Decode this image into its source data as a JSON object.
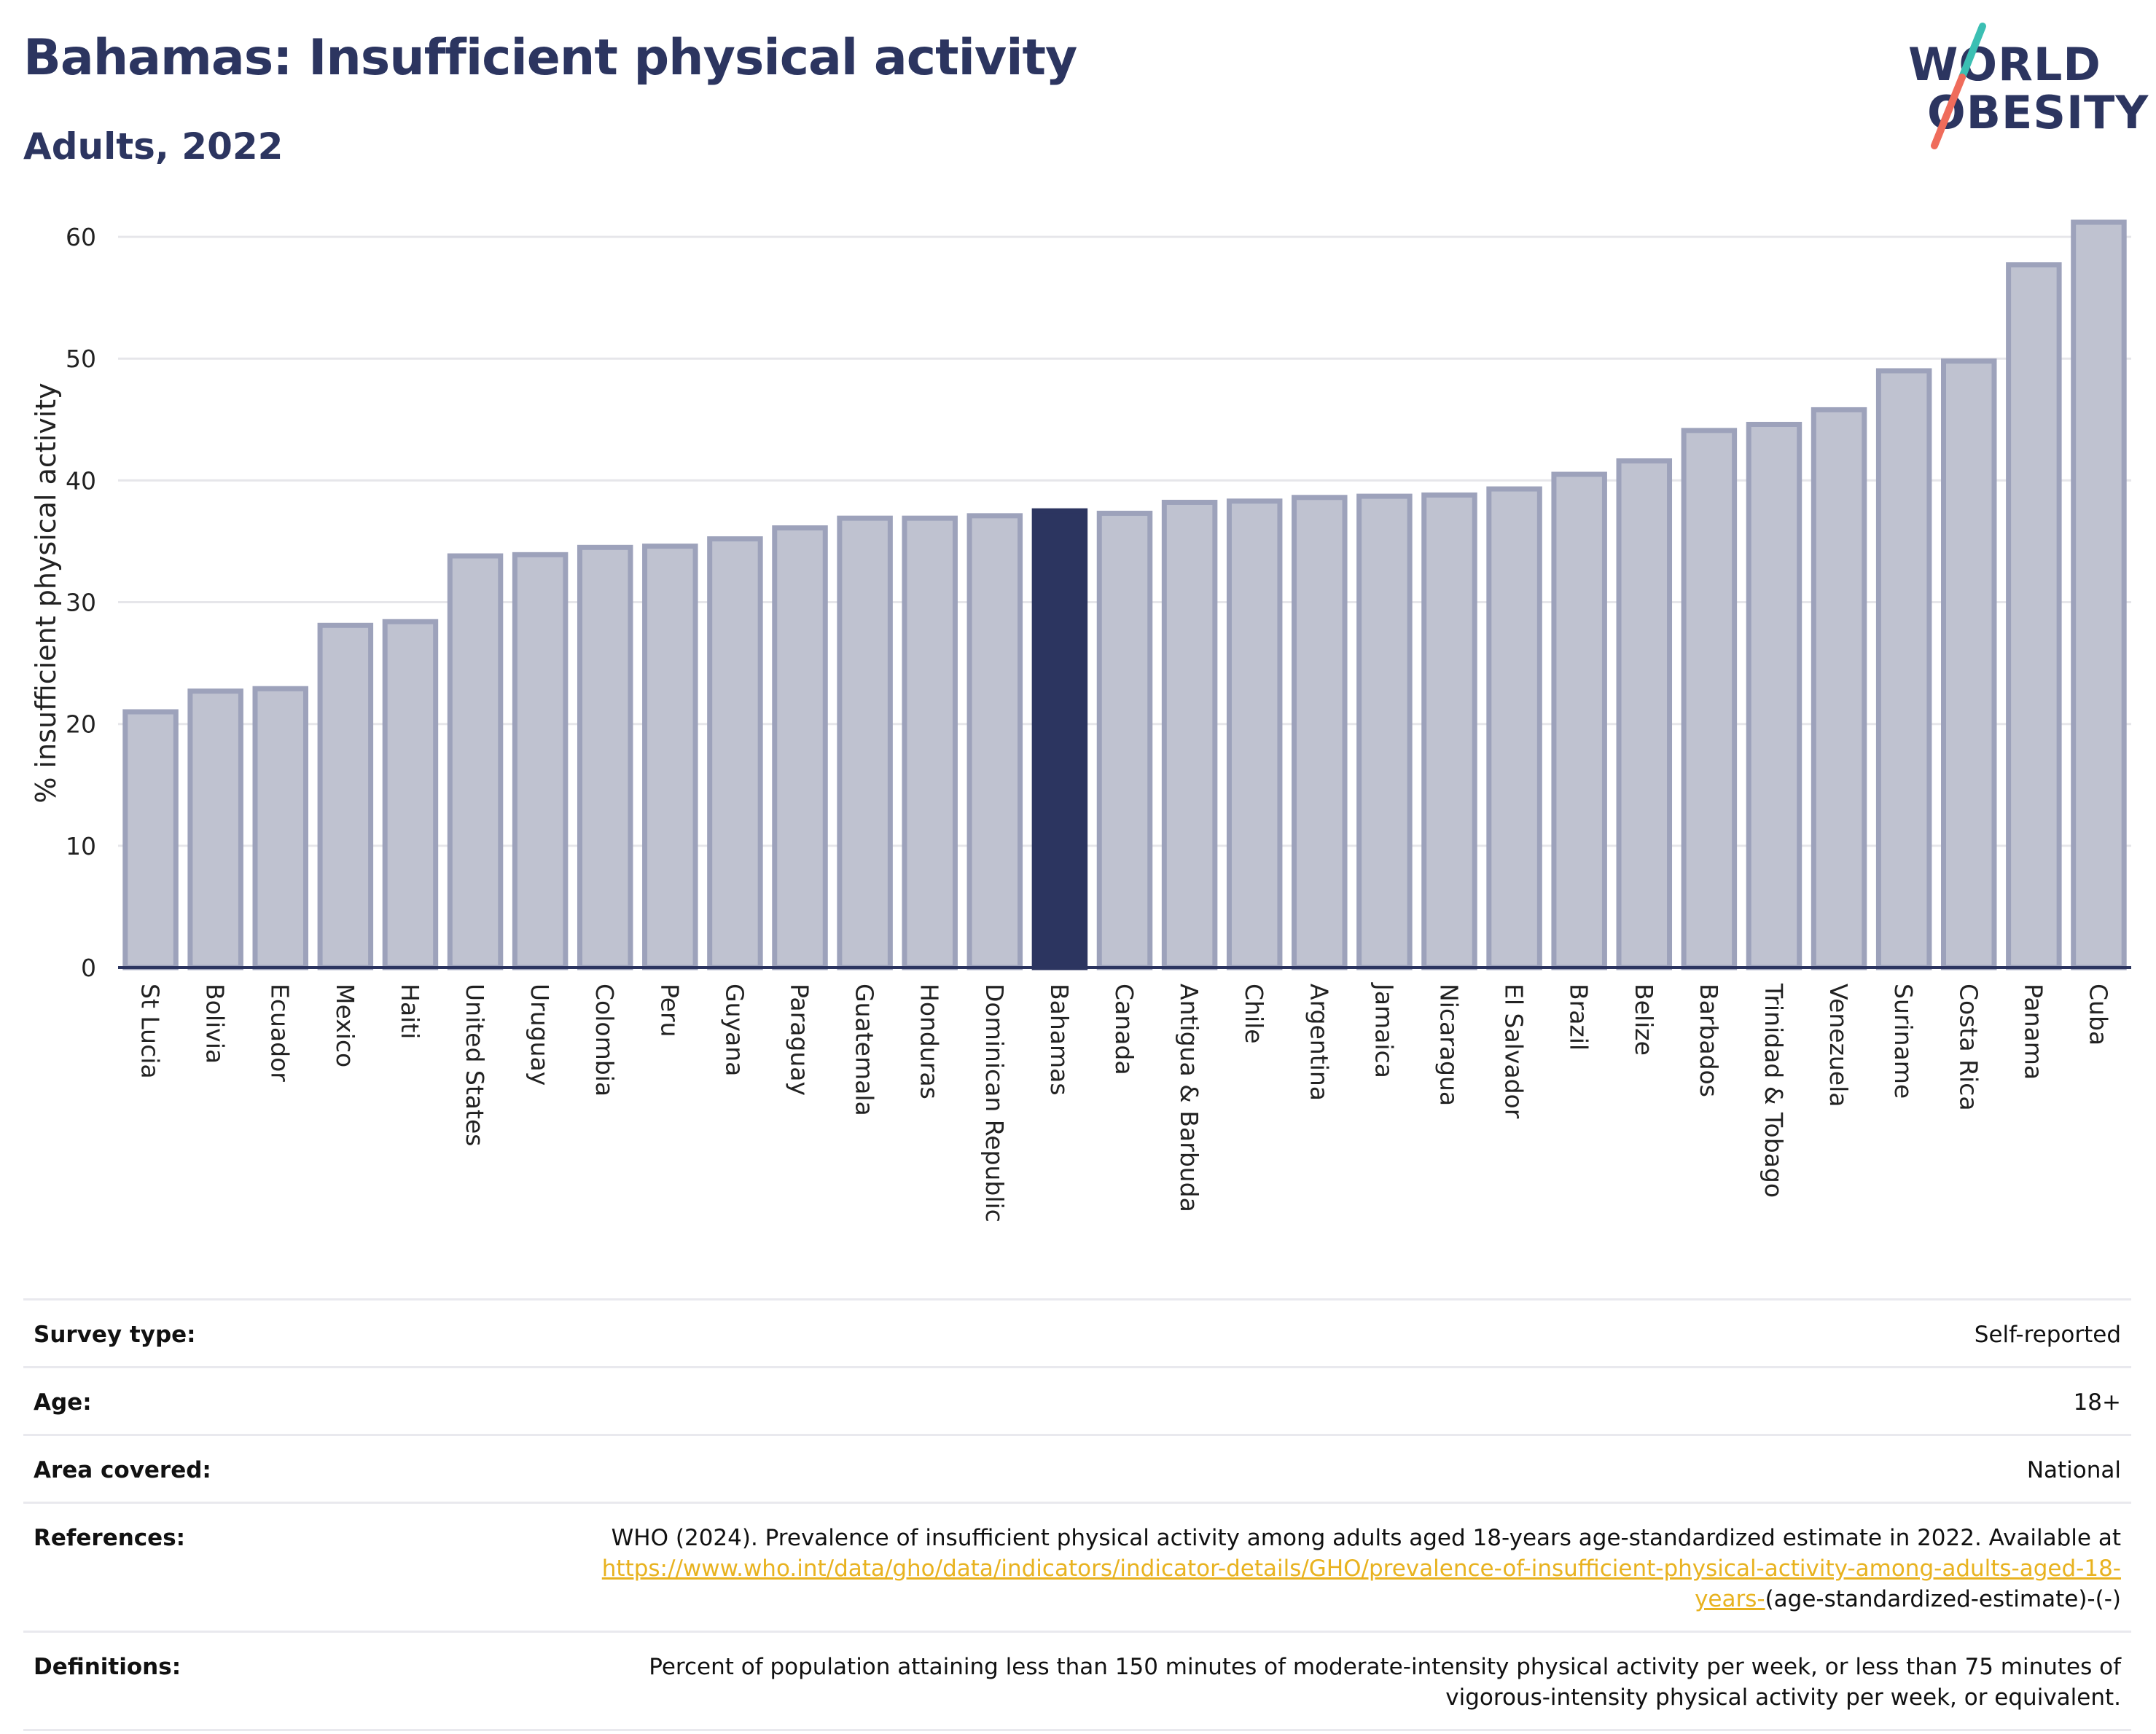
{
  "header": {
    "title": "Bahamas: Insufficient physical activity",
    "subtitle": "Adults, 2022"
  },
  "logo": {
    "line1": "WORLD",
    "line2": "OBESITY",
    "colors": {
      "text": "#2c3560",
      "slash_top": "#3bbfb3",
      "slash_bottom": "#ef6c5b"
    }
  },
  "colors": {
    "bar_fill": "#bfc2d0",
    "bar_stroke": "#9da2bb",
    "highlight": "#2c3560",
    "grid": "#e6e6ea",
    "axis": "#2c3560",
    "link": "#e8b21f"
  },
  "chart_data": {
    "type": "bar",
    "title": "Bahamas: Insufficient physical activity",
    "subtitle": "Adults, 2022",
    "ylabel": "% insufficient physical activity",
    "xlabel": "",
    "ylim": [
      0,
      60
    ],
    "yticks": [
      0,
      10,
      20,
      30,
      40,
      50,
      60
    ],
    "grid": true,
    "highlight": "Bahamas",
    "categories": [
      "St Lucia",
      "Bolivia",
      "Ecuador",
      "Mexico",
      "Haiti",
      "United States",
      "Uruguay",
      "Colombia",
      "Peru",
      "Guyana",
      "Paraguay",
      "Guatemala",
      "Honduras",
      "Dominican Republic",
      "Bahamas",
      "Canada",
      "Antigua & Barbuda",
      "Chile",
      "Argentina",
      "Jamaica",
      "Nicaragua",
      "El Salvador",
      "Brazil",
      "Belize",
      "Barbados",
      "Trinidad & Tobago",
      "Venezuela",
      "Suriname",
      "Costa Rica",
      "Panama",
      "Cuba"
    ],
    "values": [
      21.0,
      22.7,
      22.9,
      28.1,
      28.4,
      33.8,
      33.9,
      34.5,
      34.6,
      35.2,
      36.1,
      36.9,
      36.9,
      37.1,
      37.5,
      37.3,
      38.2,
      38.3,
      38.6,
      38.7,
      38.8,
      39.3,
      40.5,
      41.6,
      44.1,
      44.6,
      45.8,
      49.0,
      49.8,
      57.7,
      61.2
    ]
  },
  "info": {
    "rows": [
      {
        "label": "Survey type:",
        "value": "Self-reported"
      },
      {
        "label": "Age:",
        "value": "18+"
      },
      {
        "label": "Area covered:",
        "value": "National"
      }
    ],
    "references": {
      "label": "References:",
      "text": "WHO (2024). Prevalence of insufficient physical activity among adults aged 18-years age-standardized estimate in 2022. Available at",
      "link": "https://www.who.int/data/gho/data/indicators/indicator-details/GHO/prevalence-of-insufficient-physical-activity-among-adults-aged-18-years-",
      "suffix": "(age-standardized-estimate)-(-)"
    },
    "definitions": {
      "label": "Definitions:",
      "text": "Percent of population attaining less than 150 minutes of moderate-intensity physical activity per week, or less than 75 minutes of vigorous-intensity physical activity per week, or equivalent."
    }
  }
}
